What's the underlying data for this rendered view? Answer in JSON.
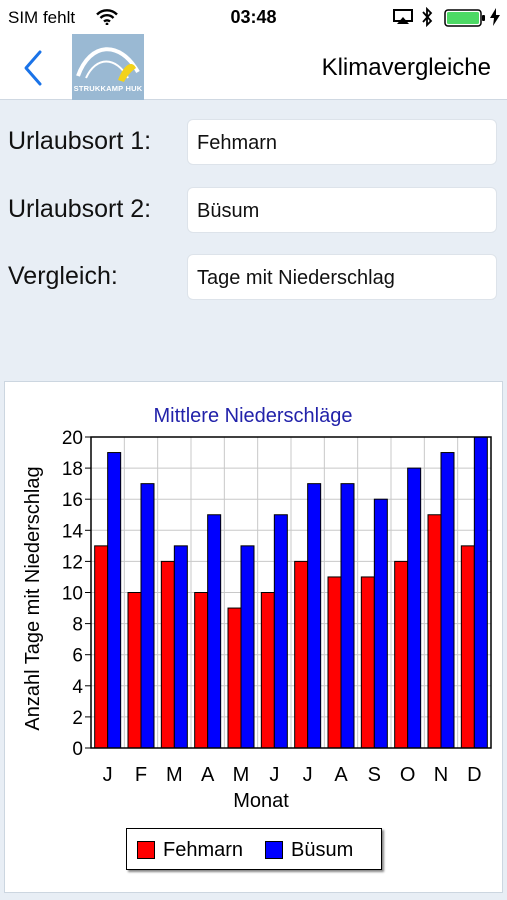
{
  "status_bar": {
    "carrier": "SIM fehlt",
    "time": "03:48"
  },
  "nav": {
    "title": "Klimavergleiche",
    "logo_text": "STRUKKAMP HUK"
  },
  "form": {
    "rows": [
      {
        "label": "Urlaubsort 1:",
        "value": "Fehmarn"
      },
      {
        "label": "Urlaubsort 2:",
        "value": "Büsum"
      },
      {
        "label": "Vergleich:",
        "value": "Tage mit Niederschlag"
      }
    ]
  },
  "colors": {
    "series1": "#ff0000",
    "series2": "#0000ff",
    "title": "#2222aa",
    "accent": "#1a73e8",
    "battery": "#4cd964"
  },
  "chart_data": {
    "type": "bar",
    "title": "Mittlere Niederschläge",
    "xlabel": "Monat",
    "ylabel": "Anzahl Tage mit Niederschlag",
    "categories": [
      "J",
      "F",
      "M",
      "A",
      "M",
      "J",
      "J",
      "A",
      "S",
      "O",
      "N",
      "D"
    ],
    "series": [
      {
        "name": "Fehmarn",
        "values": [
          13,
          10,
          12,
          10,
          9,
          10,
          12,
          11,
          11,
          12,
          15,
          13
        ]
      },
      {
        "name": "Büsum",
        "values": [
          19,
          17,
          13,
          15,
          13,
          15,
          17,
          17,
          16,
          18,
          19,
          20
        ]
      }
    ],
    "ylim": [
      0,
      20
    ],
    "yticks": [
      0,
      2,
      4,
      6,
      8,
      10,
      12,
      14,
      16,
      18,
      20
    ],
    "grid": true,
    "legend": "bottom"
  }
}
